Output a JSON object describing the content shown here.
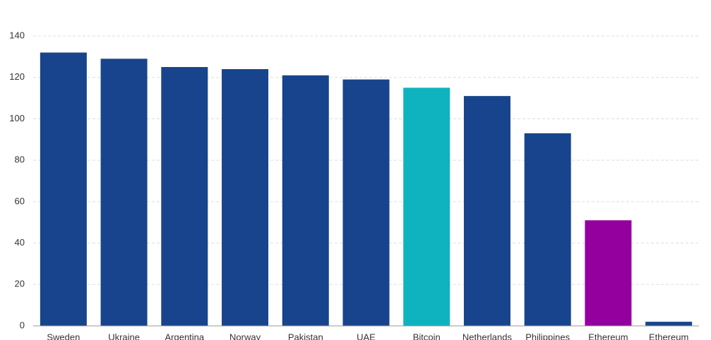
{
  "chart_data": {
    "type": "bar",
    "categories": [
      "Sweden",
      "Ukraine",
      "Argentina",
      "Norway",
      "Pakistan",
      "UAE",
      "Bitcoin",
      "Netherlands",
      "Philippines",
      "Ethereum",
      "Ethereum"
    ],
    "values": [
      132,
      129,
      125,
      124,
      121,
      119,
      115,
      111,
      93,
      51,
      2
    ],
    "colors": [
      "#17448c",
      "#17448c",
      "#17448c",
      "#17448c",
      "#17448c",
      "#17448c",
      "#0fb3bf",
      "#17448c",
      "#17448c",
      "#93009e",
      "#17448c"
    ],
    "ylim": [
      0,
      140
    ],
    "yticks": [
      0,
      20,
      40,
      60,
      80,
      100,
      120,
      140
    ],
    "grid": true
  }
}
